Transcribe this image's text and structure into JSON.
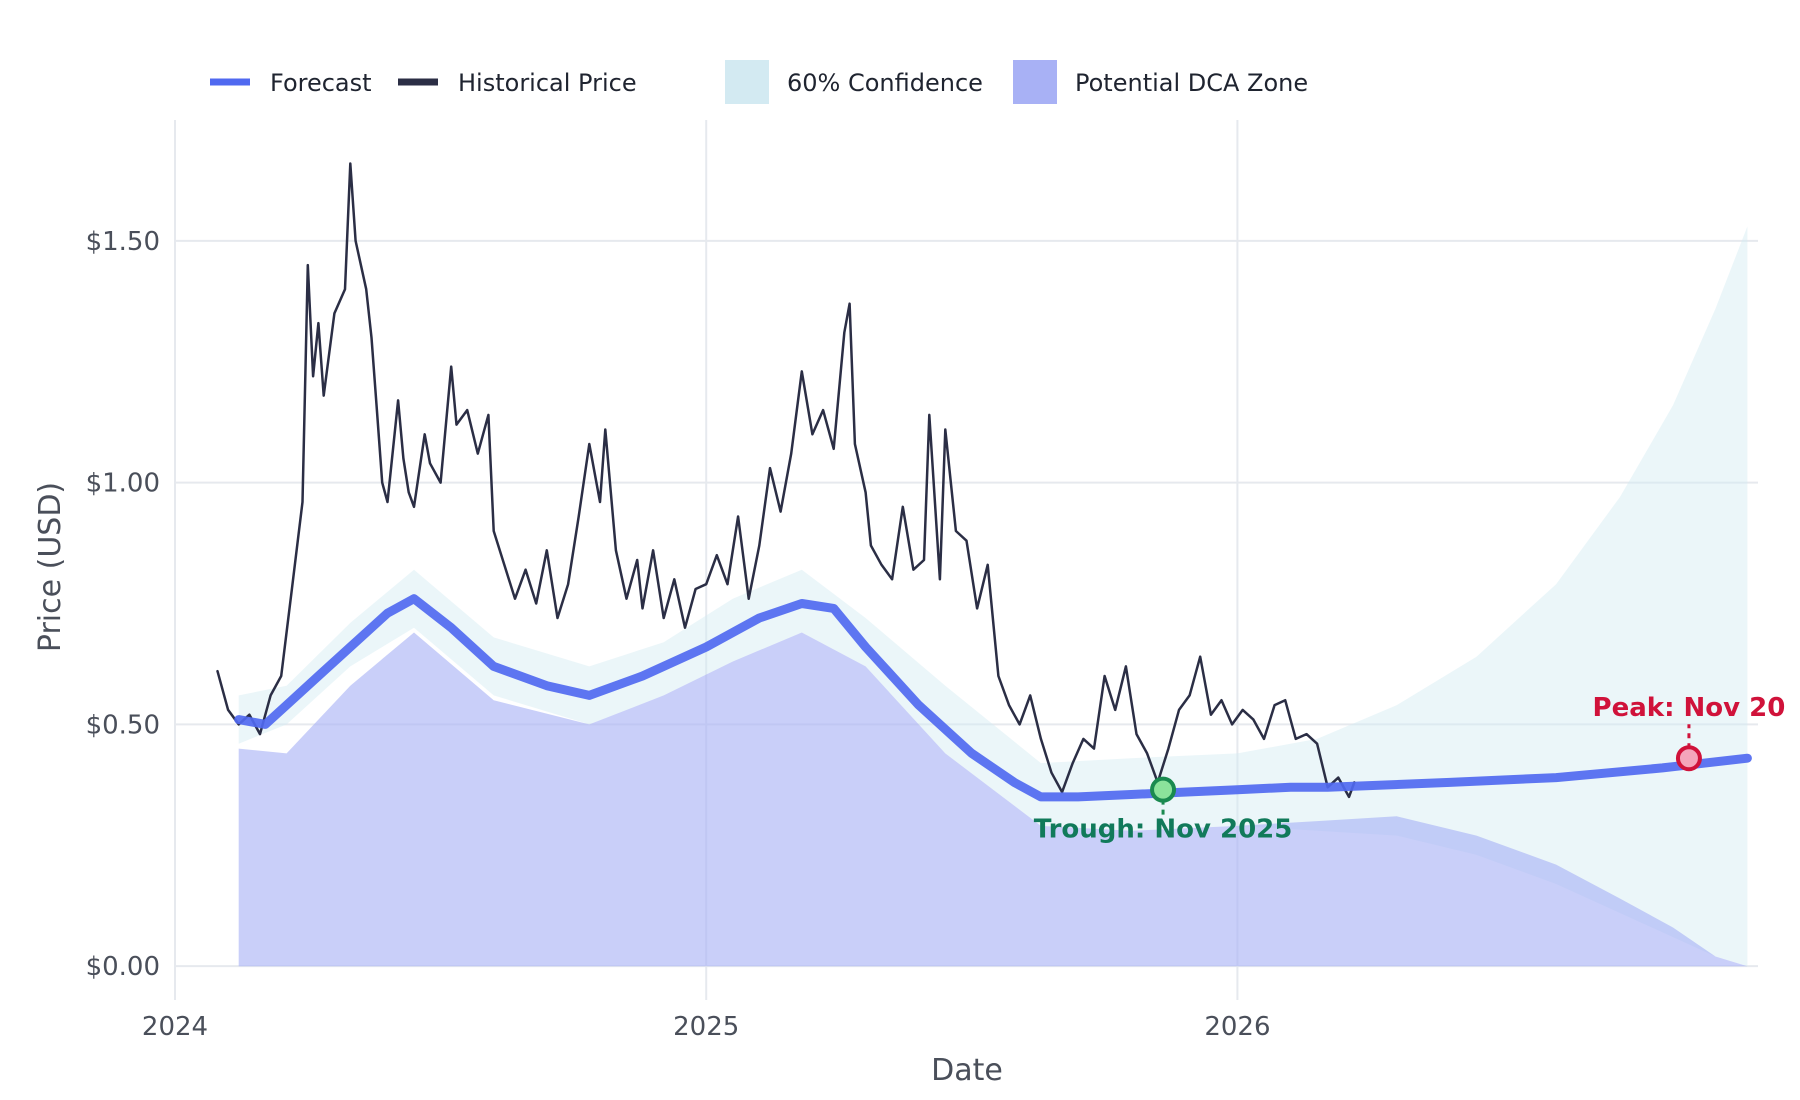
{
  "chart_data": {
    "type": "line",
    "title": "",
    "xlabel": "Date",
    "ylabel": "Price (USD)",
    "xlim": [
      2024.0,
      2026.98
    ],
    "ylim": [
      -0.07,
      1.75
    ],
    "x_ticks": [
      {
        "value": 2024,
        "label": "2024"
      },
      {
        "value": 2025,
        "label": "2025"
      },
      {
        "value": 2026,
        "label": "2026"
      }
    ],
    "y_ticks": [
      {
        "value": 0,
        "label": "$0.00"
      },
      {
        "value": 0.5,
        "label": "$0.50"
      },
      {
        "value": 1.0,
        "label": "$1.00"
      },
      {
        "value": 1.5,
        "label": "$1.50"
      }
    ],
    "legend": {
      "position": "top",
      "entries": [
        {
          "name": "Forecast",
          "kind": "line",
          "color": "#5069f0"
        },
        {
          "name": "Historical Price",
          "kind": "line",
          "color": "#2b2e45"
        },
        {
          "name": "60% Confidence",
          "kind": "patch",
          "color": "#d3eaf2"
        },
        {
          "name": "Potential DCA Zone",
          "kind": "patch",
          "color": "#a8b1f5"
        }
      ]
    },
    "series": [
      {
        "name": "Historical Price",
        "color": "#2b2e45",
        "points": [
          [
            2024.08,
            0.61
          ],
          [
            2024.1,
            0.53
          ],
          [
            2024.12,
            0.5
          ],
          [
            2024.14,
            0.52
          ],
          [
            2024.16,
            0.48
          ],
          [
            2024.18,
            0.56
          ],
          [
            2024.2,
            0.6
          ],
          [
            2024.22,
            0.78
          ],
          [
            2024.24,
            0.96
          ],
          [
            2024.25,
            1.45
          ],
          [
            2024.26,
            1.22
          ],
          [
            2024.27,
            1.33
          ],
          [
            2024.28,
            1.18
          ],
          [
            2024.3,
            1.35
          ],
          [
            2024.32,
            1.4
          ],
          [
            2024.33,
            1.66
          ],
          [
            2024.34,
            1.5
          ],
          [
            2024.36,
            1.4
          ],
          [
            2024.37,
            1.3
          ],
          [
            2024.38,
            1.15
          ],
          [
            2024.39,
            1.0
          ],
          [
            2024.4,
            0.96
          ],
          [
            2024.42,
            1.17
          ],
          [
            2024.43,
            1.05
          ],
          [
            2024.44,
            0.98
          ],
          [
            2024.45,
            0.95
          ],
          [
            2024.47,
            1.1
          ],
          [
            2024.48,
            1.04
          ],
          [
            2024.5,
            1.0
          ],
          [
            2024.52,
            1.24
          ],
          [
            2024.53,
            1.12
          ],
          [
            2024.55,
            1.15
          ],
          [
            2024.57,
            1.06
          ],
          [
            2024.59,
            1.14
          ],
          [
            2024.6,
            0.9
          ],
          [
            2024.62,
            0.83
          ],
          [
            2024.64,
            0.76
          ],
          [
            2024.66,
            0.82
          ],
          [
            2024.68,
            0.75
          ],
          [
            2024.7,
            0.86
          ],
          [
            2024.72,
            0.72
          ],
          [
            2024.74,
            0.79
          ],
          [
            2024.76,
            0.93
          ],
          [
            2024.78,
            1.08
          ],
          [
            2024.8,
            0.96
          ],
          [
            2024.81,
            1.11
          ],
          [
            2024.83,
            0.86
          ],
          [
            2024.85,
            0.76
          ],
          [
            2024.87,
            0.84
          ],
          [
            2024.88,
            0.74
          ],
          [
            2024.9,
            0.86
          ],
          [
            2024.92,
            0.72
          ],
          [
            2024.94,
            0.8
          ],
          [
            2024.96,
            0.7
          ],
          [
            2024.98,
            0.78
          ],
          [
            2025.0,
            0.79
          ],
          [
            2025.02,
            0.85
          ],
          [
            2025.04,
            0.79
          ],
          [
            2025.06,
            0.93
          ],
          [
            2025.08,
            0.76
          ],
          [
            2025.1,
            0.87
          ],
          [
            2025.12,
            1.03
          ],
          [
            2025.14,
            0.94
          ],
          [
            2025.16,
            1.06
          ],
          [
            2025.18,
            1.23
          ],
          [
            2025.2,
            1.1
          ],
          [
            2025.22,
            1.15
          ],
          [
            2025.24,
            1.07
          ],
          [
            2025.26,
            1.31
          ],
          [
            2025.27,
            1.37
          ],
          [
            2025.28,
            1.08
          ],
          [
            2025.3,
            0.98
          ],
          [
            2025.31,
            0.87
          ],
          [
            2025.33,
            0.83
          ],
          [
            2025.35,
            0.8
          ],
          [
            2025.37,
            0.95
          ],
          [
            2025.39,
            0.82
          ],
          [
            2025.41,
            0.84
          ],
          [
            2025.42,
            1.14
          ],
          [
            2025.44,
            0.8
          ],
          [
            2025.45,
            1.11
          ],
          [
            2025.47,
            0.9
          ],
          [
            2025.49,
            0.88
          ],
          [
            2025.51,
            0.74
          ],
          [
            2025.53,
            0.83
          ],
          [
            2025.55,
            0.6
          ],
          [
            2025.57,
            0.54
          ],
          [
            2025.59,
            0.5
          ],
          [
            2025.61,
            0.56
          ],
          [
            2025.63,
            0.47
          ],
          [
            2025.65,
            0.4
          ],
          [
            2025.67,
            0.36
          ],
          [
            2025.69,
            0.42
          ],
          [
            2025.71,
            0.47
          ],
          [
            2025.73,
            0.45
          ],
          [
            2025.75,
            0.6
          ],
          [
            2025.77,
            0.53
          ],
          [
            2025.79,
            0.62
          ],
          [
            2025.81,
            0.48
          ],
          [
            2025.83,
            0.44
          ],
          [
            2025.85,
            0.38
          ],
          [
            2025.87,
            0.45
          ],
          [
            2025.89,
            0.53
          ],
          [
            2025.91,
            0.56
          ],
          [
            2025.93,
            0.64
          ],
          [
            2025.95,
            0.52
          ],
          [
            2025.97,
            0.55
          ],
          [
            2025.99,
            0.5
          ],
          [
            2026.01,
            0.53
          ],
          [
            2026.03,
            0.51
          ],
          [
            2026.05,
            0.47
          ],
          [
            2026.07,
            0.54
          ],
          [
            2026.09,
            0.55
          ],
          [
            2026.11,
            0.47
          ],
          [
            2026.13,
            0.48
          ],
          [
            2026.15,
            0.46
          ],
          [
            2026.17,
            0.37
          ],
          [
            2026.19,
            0.39
          ],
          [
            2026.21,
            0.35
          ],
          [
            2026.22,
            0.38
          ]
        ]
      },
      {
        "name": "Forecast",
        "color": "#5069f0",
        "points": [
          [
            2024.12,
            0.51
          ],
          [
            2024.17,
            0.5
          ],
          [
            2024.21,
            0.54
          ],
          [
            2024.27,
            0.6
          ],
          [
            2024.33,
            0.66
          ],
          [
            2024.4,
            0.73
          ],
          [
            2024.45,
            0.76
          ],
          [
            2024.52,
            0.7
          ],
          [
            2024.6,
            0.62
          ],
          [
            2024.7,
            0.58
          ],
          [
            2024.78,
            0.56
          ],
          [
            2024.88,
            0.6
          ],
          [
            2025.0,
            0.66
          ],
          [
            2025.1,
            0.72
          ],
          [
            2025.18,
            0.75
          ],
          [
            2025.24,
            0.74
          ],
          [
            2025.3,
            0.66
          ],
          [
            2025.4,
            0.54
          ],
          [
            2025.5,
            0.44
          ],
          [
            2025.58,
            0.38
          ],
          [
            2025.63,
            0.35
          ],
          [
            2025.7,
            0.35
          ],
          [
            2025.8,
            0.355
          ],
          [
            2025.9,
            0.36
          ],
          [
            2026.0,
            0.365
          ],
          [
            2026.1,
            0.37
          ],
          [
            2026.17,
            0.37
          ],
          [
            2026.4,
            0.38
          ],
          [
            2026.6,
            0.39
          ],
          [
            2026.8,
            0.41
          ],
          [
            2026.96,
            0.43
          ]
        ]
      }
    ],
    "bands": [
      {
        "name": "60% Confidence",
        "color": "#d3eaf2",
        "x": [
          2024.12,
          2024.21,
          2024.33,
          2024.45,
          2024.6,
          2024.78,
          2024.92,
          2025.05,
          2025.18,
          2025.3,
          2025.45,
          2025.63,
          2025.8,
          2026.0,
          2026.15,
          2026.3,
          2026.45,
          2026.6,
          2026.72,
          2026.82,
          2026.9,
          2026.96
        ],
        "lower": [
          0.46,
          0.5,
          0.62,
          0.7,
          0.56,
          0.5,
          0.56,
          0.63,
          0.69,
          0.62,
          0.44,
          0.29,
          0.28,
          0.29,
          0.28,
          0.27,
          0.23,
          0.17,
          0.11,
          0.06,
          0.02,
          0.0
        ],
        "upper": [
          0.56,
          0.58,
          0.71,
          0.82,
          0.68,
          0.62,
          0.67,
          0.76,
          0.82,
          0.72,
          0.58,
          0.42,
          0.43,
          0.44,
          0.47,
          0.54,
          0.64,
          0.79,
          0.97,
          1.16,
          1.36,
          1.53
        ]
      },
      {
        "name": "Potential DCA Zone",
        "color": "#a8b1f5",
        "x": [
          2024.12,
          2024.21,
          2024.33,
          2024.45,
          2024.6,
          2024.78,
          2024.92,
          2025.05,
          2025.18,
          2025.3,
          2025.45,
          2025.63,
          2025.8,
          2026.0,
          2026.15,
          2026.3,
          2026.45,
          2026.6,
          2026.72,
          2026.82,
          2026.9,
          2026.96
        ],
        "lower": [
          0,
          0,
          0,
          0,
          0,
          0,
          0,
          0,
          0,
          0,
          0,
          0,
          0,
          0,
          0,
          0,
          0,
          0,
          0,
          0,
          0,
          0
        ],
        "upper": [
          0.45,
          0.44,
          0.58,
          0.69,
          0.55,
          0.5,
          0.56,
          0.63,
          0.69,
          0.62,
          0.44,
          0.29,
          0.28,
          0.29,
          0.3,
          0.31,
          0.27,
          0.21,
          0.14,
          0.08,
          0.02,
          0.0
        ]
      }
    ],
    "markers": [
      {
        "name": "trough",
        "x": 2025.86,
        "y": 0.365,
        "fill": "#8be39b",
        "stroke": "#1a8a50",
        "label_color": "#117a5a",
        "label": "Trough: Nov 2025",
        "label_side": "below"
      },
      {
        "name": "peak",
        "x": 2026.85,
        "y": 0.43,
        "fill": "#f4a5bb",
        "stroke": "#d0123a",
        "label_color": "#d0123a",
        "label": "Peak: Nov 20",
        "label_side": "above"
      }
    ]
  }
}
